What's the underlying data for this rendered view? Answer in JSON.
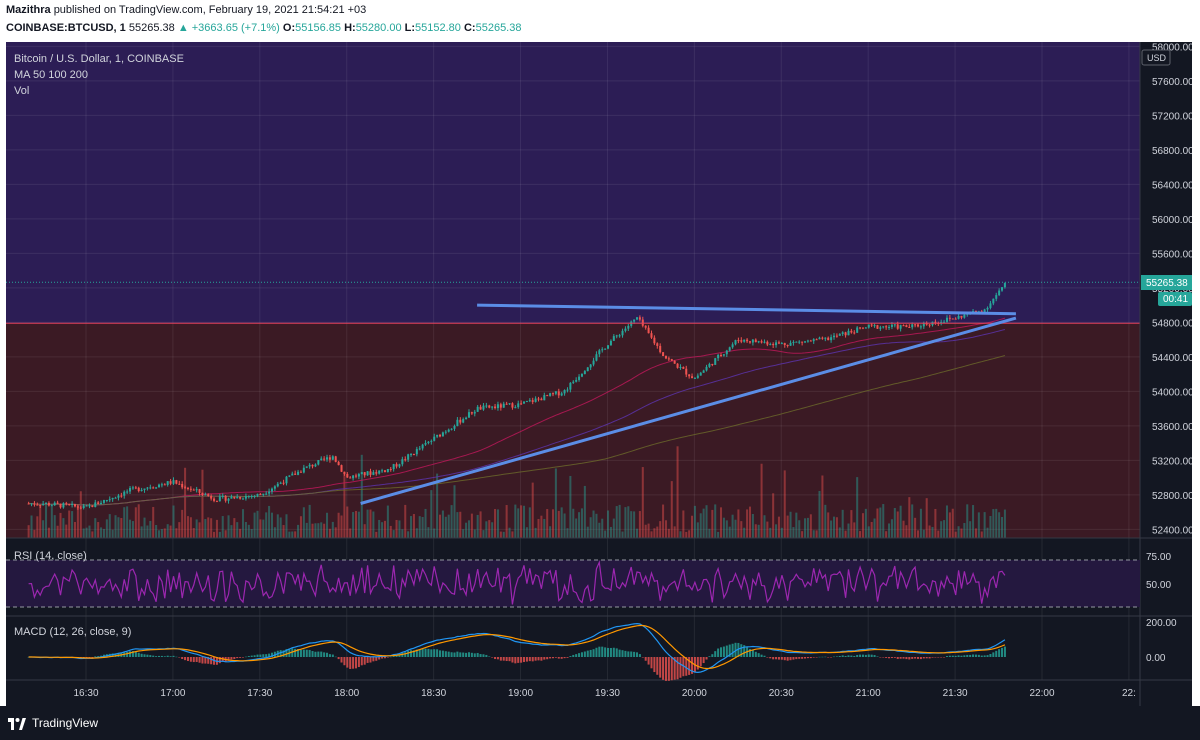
{
  "header": {
    "author": "Mazithra",
    "published": "published on TradingView.com, February 19, 2021 21:54:21 +03",
    "symbol": "COINBASE:BTCUSD, 1",
    "last": "55265.38",
    "change": "▲ +3663.65 (+7.1%)",
    "o_label": "O:",
    "o_value": "55156.85",
    "h_label": "H:",
    "h_value": "55280.00",
    "l_label": "L:",
    "l_value": "55152.80",
    "c_label": "C:",
    "c_value": "55265.38"
  },
  "legend": {
    "title": "Bitcoin / U.S. Dollar, 1, COINBASE",
    "ma": "MA 50 100 200",
    "vol": "Vol"
  },
  "price_badge": {
    "value": "55265.38",
    "countdown": "00:41",
    "currency": "USD"
  },
  "rsi": {
    "label": "RSI (14, close)",
    "ticks": [
      "75.00",
      "50.00"
    ]
  },
  "macd": {
    "label": "MACD (12, 26, close, 9)",
    "ticks": [
      "200.00",
      "0.00"
    ]
  },
  "footer": {
    "brand": "TradingView"
  },
  "colors": {
    "background": "#131722",
    "upper_zone": "#2c1d55",
    "lower_zone": "#3b1a24",
    "trendline": "#5b8de6",
    "candle_up": "#26a69a",
    "candle_down": "#ef5350",
    "rsi_line": "#9c27b0",
    "macd_line": "#2196f3",
    "signal_line": "#ff9800"
  },
  "chart_data": {
    "type": "candlestick",
    "x_ticks": [
      "16:30",
      "17:00",
      "17:30",
      "18:00",
      "18:30",
      "19:00",
      "19:30",
      "20:00",
      "20:30",
      "21:00",
      "21:30",
      "22:00",
      "22:"
    ],
    "y_ticks": [
      58000,
      57600,
      57200,
      56800,
      56400,
      56000,
      55600,
      55200,
      54800,
      54400,
      54000,
      53600,
      53200,
      52800,
      52400
    ],
    "ylim": [
      52300,
      58050
    ],
    "close_path": [
      [
        16.25,
        52700
      ],
      [
        16.5,
        52650
      ],
      [
        16.75,
        52850
      ],
      [
        17.0,
        52950
      ],
      [
        17.25,
        52750
      ],
      [
        17.5,
        52800
      ],
      [
        17.75,
        53100
      ],
      [
        17.92,
        53250
      ],
      [
        18.0,
        53000
      ],
      [
        18.25,
        53100
      ],
      [
        18.5,
        53450
      ],
      [
        18.75,
        53800
      ],
      [
        19.0,
        53850
      ],
      [
        19.25,
        54000
      ],
      [
        19.5,
        54550
      ],
      [
        19.67,
        54850
      ],
      [
        19.83,
        54400
      ],
      [
        20.0,
        54150
      ],
      [
        20.25,
        54600
      ],
      [
        20.5,
        54550
      ],
      [
        20.75,
        54600
      ],
      [
        21.0,
        54750
      ],
      [
        21.25,
        54750
      ],
      [
        21.5,
        54850
      ],
      [
        21.67,
        54950
      ],
      [
        21.8,
        55265
      ]
    ],
    "trendlines": [
      {
        "name": "resistance",
        "start": [
          18.75,
          55000
        ],
        "end": [
          21.85,
          54900
        ]
      },
      {
        "name": "support",
        "start": [
          18.08,
          52700
        ],
        "end": [
          21.85,
          54850
        ]
      }
    ],
    "horizontal_level": 54790
  }
}
